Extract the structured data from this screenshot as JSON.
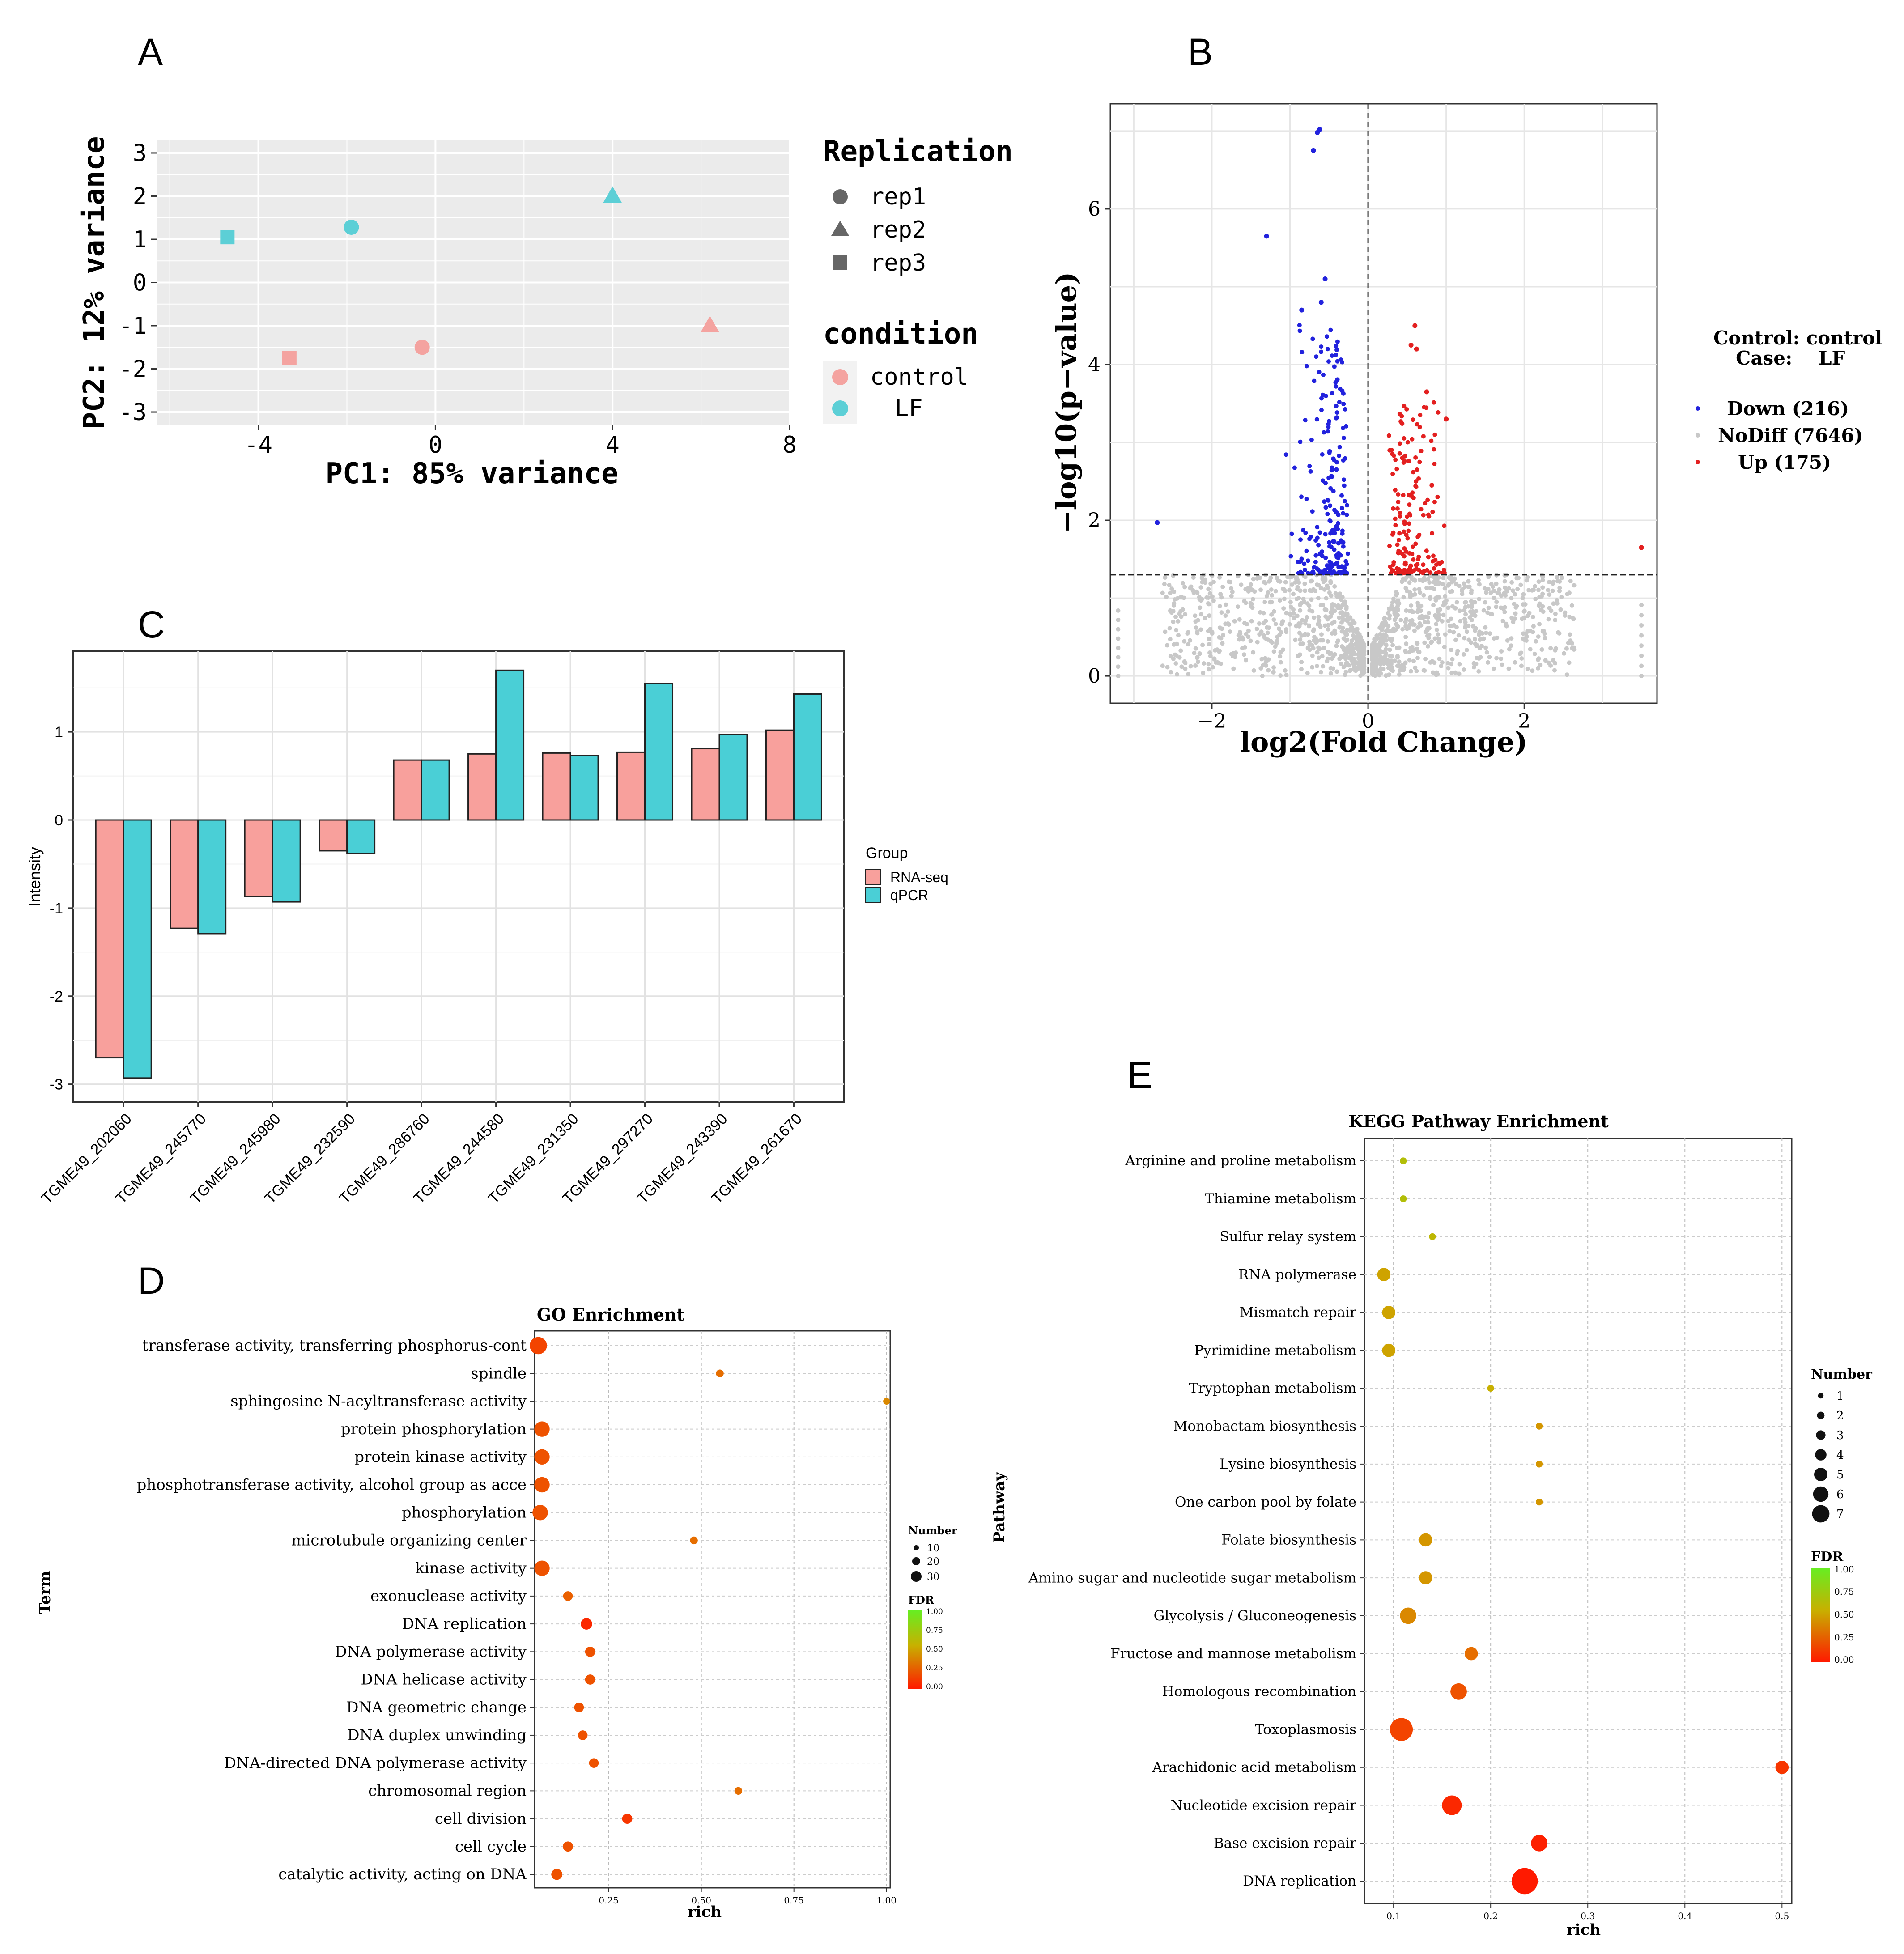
{
  "panel_letters": [
    "A",
    "B",
    "C",
    "D",
    "E"
  ],
  "chart_data": [
    {
      "panel": "A",
      "type": "scatter",
      "title": "",
      "xlabel": "PC1: 85% variance",
      "ylabel": "PC2: 12% variance",
      "xlim": [
        -6.3,
        8.0
      ],
      "ylim": [
        -3.3,
        3.3
      ],
      "xticks": [
        -4,
        0,
        4,
        8
      ],
      "yticks": [
        3,
        2,
        1,
        0,
        -1,
        -2,
        -3
      ],
      "grid": true,
      "points": [
        {
          "x": -4.7,
          "y": 1.05,
          "condition": "LF",
          "replication": "rep3"
        },
        {
          "x": -1.9,
          "y": 1.28,
          "condition": "LF",
          "replication": "rep1"
        },
        {
          "x": 4.0,
          "y": 2.0,
          "condition": "LF",
          "replication": "rep2"
        },
        {
          "x": -3.3,
          "y": -1.75,
          "condition": "control",
          "replication": "rep3"
        },
        {
          "x": -0.3,
          "y": -1.5,
          "condition": "control",
          "replication": "rep1"
        },
        {
          "x": 6.2,
          "y": -1.0,
          "condition": "control",
          "replication": "rep2"
        }
      ],
      "legend": {
        "replication_title": "Replication",
        "replication": [
          {
            "label": "rep1",
            "shape": "circle"
          },
          {
            "label": "rep2",
            "shape": "triangle"
          },
          {
            "label": "rep3",
            "shape": "square"
          }
        ],
        "condition_title": "condition",
        "condition": [
          {
            "label": "control",
            "color": "#f4a3a0"
          },
          {
            "label": "LF",
            "color": "#5ccfd6"
          }
        ]
      }
    },
    {
      "panel": "B",
      "type": "scatter",
      "title": "",
      "xlabel": "log2(Fold Change)",
      "ylabel": "−log10(p−value)",
      "xlim": [
        -3.3,
        3.7
      ],
      "ylim": [
        -0.35,
        7.35
      ],
      "xticks": [
        -2,
        0,
        2
      ],
      "yticks": [
        0,
        2,
        4,
        6
      ],
      "threshold_x": 0,
      "threshold_y": 1.3,
      "header": {
        "line1": "Control: control",
        "line2": "Case:    LF"
      },
      "legend": [
        {
          "label": "Down (216)",
          "color": "#2222dd"
        },
        {
          "label": "NoDiff (7646)",
          "color": "#c8c8c8"
        },
        {
          "label": "Up (175)",
          "color": "#e32020"
        }
      ],
      "notable_points": [
        {
          "x": -0.62,
          "y": 7.02,
          "group": "Down"
        },
        {
          "x": -0.65,
          "y": 6.98,
          "group": "Down"
        },
        {
          "x": -0.7,
          "y": 6.75,
          "group": "Down"
        },
        {
          "x": -1.3,
          "y": 5.65,
          "group": "Down"
        },
        {
          "x": -0.55,
          "y": 5.1,
          "group": "Down"
        },
        {
          "x": -0.6,
          "y": 4.8,
          "group": "Down"
        },
        {
          "x": -0.85,
          "y": 4.7,
          "group": "Down"
        },
        {
          "x": -2.7,
          "y": 1.97,
          "group": "Down"
        },
        {
          "x": 0.6,
          "y": 4.5,
          "group": "Up"
        },
        {
          "x": 0.55,
          "y": 4.25,
          "group": "Up"
        },
        {
          "x": 0.62,
          "y": 4.2,
          "group": "Up"
        },
        {
          "x": 0.75,
          "y": 3.65,
          "group": "Up"
        },
        {
          "x": 1.0,
          "y": 3.3,
          "group": "Up"
        },
        {
          "x": 3.5,
          "y": 1.65,
          "group": "Up"
        }
      ]
    },
    {
      "panel": "C",
      "type": "bar",
      "title": "",
      "xlabel": "",
      "ylabel": "Intensity",
      "ylim": [
        -3.2,
        1.92
      ],
      "yticks": [
        1,
        0,
        -1,
        -2,
        -3
      ],
      "categories": [
        "TGME49_202060",
        "TGME49_245770",
        "TGME49_245980",
        "TGME49_232590",
        "TGME49_286760",
        "TGME49_244580",
        "TGME49_231350",
        "TGME49_297270",
        "TGME49_243390",
        "TGME49_261670"
      ],
      "series": [
        {
          "name": "RNA-seq",
          "color": "#f8a09c",
          "values": [
            -2.7,
            -1.23,
            -0.87,
            -0.35,
            0.68,
            0.75,
            0.76,
            0.77,
            0.81,
            1.02
          ]
        },
        {
          "name": "qPCR",
          "color": "#4acfd6",
          "values": [
            -2.93,
            -1.29,
            -0.93,
            -0.38,
            0.68,
            1.7,
            0.73,
            1.55,
            0.97,
            1.43
          ]
        }
      ],
      "legend_title": "Group"
    },
    {
      "panel": "D",
      "type": "scatter",
      "title": "GO Enrichment",
      "xlabel": "rich",
      "ylabel": "Term",
      "xlim": [
        0.05,
        1.01
      ],
      "xticks": [
        0.25,
        0.5,
        0.75,
        1.0
      ],
      "xtick_labels": [
        "0.25",
        "0.50",
        "0.75",
        "1.00"
      ],
      "terms": [
        "transferase activity, transferring phosphorus-cont",
        "spindle",
        "sphingosine N-acyltransferase activity",
        "protein phosphorylation",
        "protein kinase activity",
        "phosphotransferase activity, alcohol group as acce",
        "phosphorylation",
        "microtubule organizing center",
        "kinase activity",
        "exonuclease activity",
        "DNA replication",
        "DNA polymerase activity",
        "DNA helicase activity",
        "DNA geometric change",
        "DNA duplex unwinding",
        "DNA-directed DNA polymerase activity",
        "chromosomal region",
        "cell division",
        "cell cycle",
        "catalytic activity, acting on DNA"
      ],
      "rich": [
        0.06,
        0.55,
        1.0,
        0.07,
        0.07,
        0.07,
        0.065,
        0.48,
        0.07,
        0.14,
        0.19,
        0.2,
        0.2,
        0.17,
        0.18,
        0.21,
        0.6,
        0.3,
        0.14,
        0.11
      ],
      "number": [
        30,
        2,
        1,
        22,
        22,
        22,
        22,
        2,
        22,
        5,
        9,
        6,
        6,
        5,
        5,
        5,
        2,
        6,
        6,
        8
      ],
      "fdr": [
        0.15,
        0.3,
        0.4,
        0.2,
        0.2,
        0.2,
        0.2,
        0.3,
        0.2,
        0.25,
        0.05,
        0.2,
        0.2,
        0.2,
        0.2,
        0.2,
        0.3,
        0.1,
        0.2,
        0.2
      ],
      "size_legend": {
        "title": "Number",
        "values": [
          "10",
          "20",
          "30"
        ]
      },
      "color_legend": {
        "title": "FDR",
        "labels": [
          "1.00",
          "0.75",
          "0.50",
          "0.25",
          "0.00"
        ]
      }
    },
    {
      "panel": "E",
      "type": "scatter",
      "title": "KEGG Pathway Enrichment",
      "xlabel": "rich",
      "ylabel": "Pathway",
      "xlim": [
        0.07,
        0.51
      ],
      "xticks": [
        0.1,
        0.2,
        0.3,
        0.4,
        0.5
      ],
      "xtick_labels": [
        "0.1",
        "0.2",
        "0.3",
        "0.4",
        "0.5"
      ],
      "pathways": [
        "Arginine and proline metabolism",
        "Thiamine metabolism",
        "Sulfur relay system",
        "RNA polymerase",
        "Mismatch repair",
        "Pyrimidine metabolism",
        "Tryptophan metabolism",
        "Monobactam biosynthesis",
        "Lysine biosynthesis",
        "One carbon pool by folate",
        "Folate biosynthesis",
        "Amino sugar and nucleotide sugar metabolism",
        "Glycolysis / Gluconeogenesis",
        "Fructose and mannose metabolism",
        "Homologous recombination",
        "Toxoplasmosis",
        "Arachidonic acid metabolism",
        "Nucleotide excision repair",
        "Base excision repair",
        "DNA replication"
      ],
      "rich": [
        0.11,
        0.11,
        0.14,
        0.09,
        0.095,
        0.095,
        0.2,
        0.25,
        0.25,
        0.25,
        0.133,
        0.133,
        0.115,
        0.18,
        0.167,
        0.108,
        0.5,
        0.16,
        0.25,
        0.235
      ],
      "number": [
        1,
        1,
        1,
        3,
        3,
        3,
        1,
        1,
        1,
        1,
        3,
        3,
        4,
        3,
        4,
        6,
        3,
        5,
        4,
        7
      ],
      "fdr": [
        0.65,
        0.65,
        0.6,
        0.5,
        0.5,
        0.5,
        0.55,
        0.45,
        0.45,
        0.45,
        0.45,
        0.45,
        0.4,
        0.3,
        0.2,
        0.15,
        0.1,
        0.05,
        0.02,
        0.0
      ],
      "size_legend": {
        "title": "Number",
        "values": [
          "1",
          "2",
          "3",
          "4",
          "5",
          "6",
          "7"
        ]
      },
      "color_legend": {
        "title": "FDR",
        "labels": [
          "1.00",
          "0.75",
          "0.50",
          "0.25",
          "0.00"
        ]
      }
    }
  ]
}
